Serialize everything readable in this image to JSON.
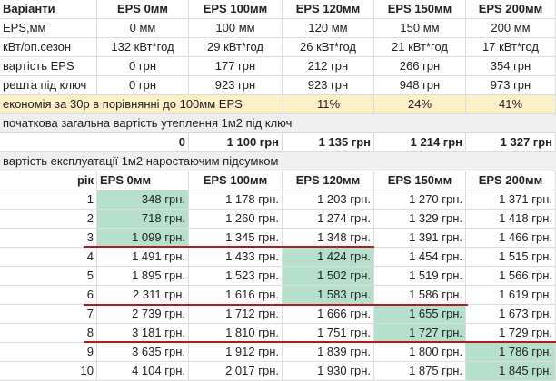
{
  "columns": [
    "Варіанти",
    "EPS 0мм",
    "EPS 100мм",
    "EPS 120мм",
    "EPS 150мм",
    "EPS 200мм"
  ],
  "spec_rows": [
    {
      "label": "EPS,мм",
      "values": [
        "0 мм",
        "100 мм",
        "120 мм",
        "150 мм",
        "200 мм"
      ]
    },
    {
      "label": "кВт/оп.сезон",
      "values": [
        "132 кВт*год",
        "29 кВт*год",
        "26 кВт*год",
        "21 кВт*год",
        "17 кВт*год"
      ]
    },
    {
      "label": "вартість EPS",
      "values": [
        "0 грн",
        "177 грн",
        "212 грн",
        "266 грн",
        "354 грн"
      ]
    },
    {
      "label": "решта під ключ",
      "values": [
        "0 грн",
        "923 грн",
        "923 грн",
        "948 грн",
        "973 грн"
      ]
    }
  ],
  "economy_row": {
    "label": "економія за 30р в порівнянні до 100мм EPS",
    "values": [
      "11%",
      "24%",
      "41%"
    ]
  },
  "initial_cost": {
    "heading": "початкова загальна вартість утеплення 1м2 під ключ",
    "values": [
      "0",
      "1 100 грн",
      "1 135 грн",
      "1 214 грн",
      "1 327 грн"
    ]
  },
  "operation": {
    "heading": "вартість експлуатації 1м2 наростаючим підсумком",
    "columns": [
      "рік",
      "EPS 0мм",
      "EPS 100мм",
      "EPS 120мм",
      "EPS 150мм",
      "EPS 200мм"
    ],
    "rows": [
      {
        "year": "1",
        "values": [
          "348 грн.",
          "1 178 грн.",
          "1 203 грн.",
          "1 270 грн.",
          "1 371 грн."
        ],
        "best": 0
      },
      {
        "year": "2",
        "values": [
          "718 грн.",
          "1 260 грн.",
          "1 274 грн.",
          "1 329 грн.",
          "1 418 грн."
        ],
        "best": 0
      },
      {
        "year": "3",
        "values": [
          "1 099 грн.",
          "1 345 грн.",
          "1 348 грн.",
          "1 391 грн.",
          "1 466 грн."
        ],
        "best": 0
      },
      {
        "year": "4",
        "values": [
          "1 491 грн.",
          "1 433 грн.",
          "1 424 грн.",
          "1 454 грн.",
          "1 515 грн."
        ],
        "best": 2
      },
      {
        "year": "5",
        "values": [
          "1 895 грн.",
          "1 523 грн.",
          "1 502 грн.",
          "1 519 грн.",
          "1 566 грн."
        ],
        "best": 2
      },
      {
        "year": "6",
        "values": [
          "2 311 грн.",
          "1 616 грн.",
          "1 583 грн.",
          "1 586 грн.",
          "1 619 грн."
        ],
        "best": 2
      },
      {
        "year": "7",
        "values": [
          "2 739 грн.",
          "1 712 грн.",
          "1 666 грн.",
          "1 655 грн.",
          "1 673 грн."
        ],
        "best": 3
      },
      {
        "year": "8",
        "values": [
          "3 181 грн.",
          "1 810 грн.",
          "1 751 грн.",
          "1 727 грн.",
          "1 729 грн."
        ],
        "best": 3
      },
      {
        "year": "9",
        "values": [
          "3 635 грн.",
          "1 912 грн.",
          "1 839 грн.",
          "1 800 грн.",
          "1 786 грн."
        ],
        "best": 4
      },
      {
        "year": "10",
        "values": [
          "4 104 грн.",
          "2 017 грн.",
          "1 930 грн.",
          "1 875 грн.",
          "1 845 грн."
        ],
        "best": 4
      }
    ]
  },
  "colors": {
    "highlight_row": "#fdefc6",
    "best_cell": "#b6dfcc",
    "separator": "#b31b1b",
    "section_gray": "#efefef"
  }
}
